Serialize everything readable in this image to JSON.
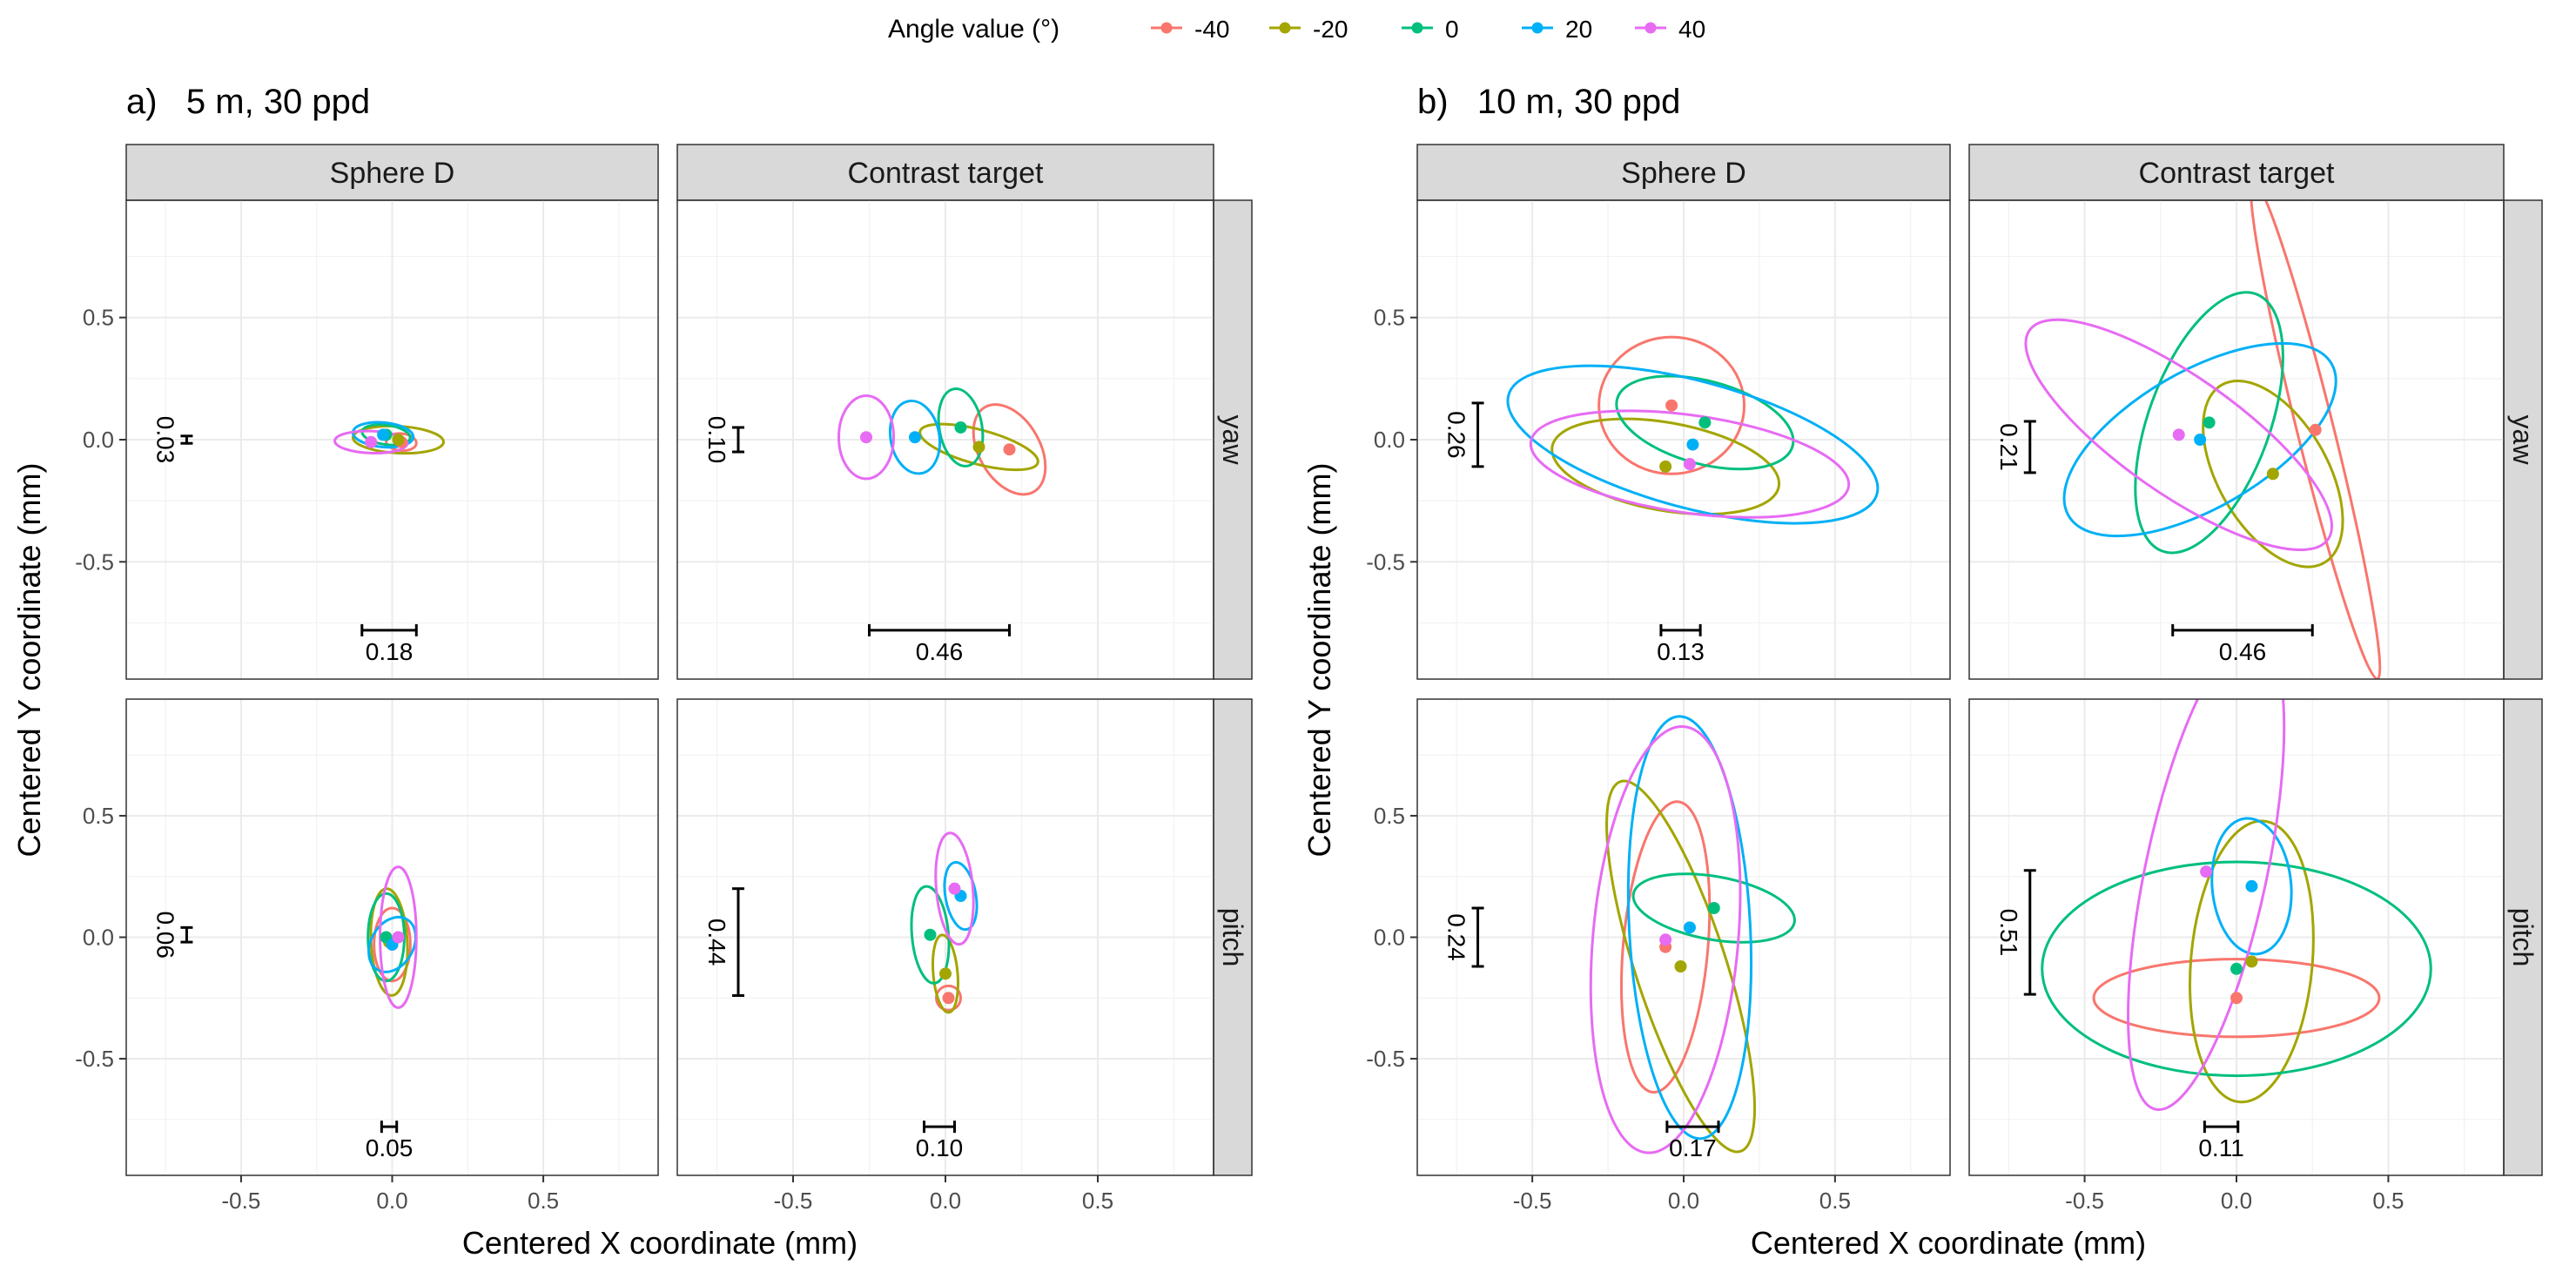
{
  "legend": {
    "title": "Angle value (°)",
    "items": [
      {
        "label": "-40",
        "color": "#F8766D"
      },
      {
        "label": "-20",
        "color": "#A3A500"
      },
      {
        "label": "0",
        "color": "#00BF7D"
      },
      {
        "label": "20",
        "color": "#00B0F6"
      },
      {
        "label": "40",
        "color": "#E76BF3"
      }
    ]
  },
  "axes": {
    "xlabel": "Centered X coordinate (mm)",
    "ylabel": "Centered Y coordinate (mm)",
    "xticks": [
      "-0.5",
      "0.0",
      "0.5"
    ],
    "yticks": [
      "0.5",
      "0.0",
      "-0.5"
    ]
  },
  "chart_data": [
    {
      "type": "scatter",
      "panel_title": "a)   5 m, 30 ppd",
      "xlim": [
        -0.88,
        0.88
      ],
      "ylim": [
        -0.98,
        0.98
      ],
      "facets": [
        {
          "col": "Sphere D",
          "row": "yaw",
          "h_bar": {
            "center": -0.01,
            "width": 0.18,
            "label": "0.18"
          },
          "v_bar": {
            "center": 0.0,
            "height": 0.03,
            "label": "0.03"
          },
          "series": [
            {
              "angle": "-40",
              "x": 0.03,
              "y": -0.01,
              "rx": 0.05,
              "ry": 0.035,
              "rot": -5
            },
            {
              "angle": "-20",
              "x": 0.02,
              "y": 0.0,
              "rx": 0.15,
              "ry": 0.055,
              "rot": -3
            },
            {
              "angle": "0",
              "x": -0.02,
              "y": 0.02,
              "rx": 0.08,
              "ry": 0.04,
              "rot": -8
            },
            {
              "angle": "20",
              "x": -0.03,
              "y": 0.02,
              "rx": 0.1,
              "ry": 0.05,
              "rot": -5
            },
            {
              "angle": "40",
              "x": -0.07,
              "y": -0.01,
              "rx": 0.12,
              "ry": 0.045,
              "rot": -2
            }
          ]
        },
        {
          "col": "Contrast target",
          "row": "yaw",
          "h_bar": {
            "center": -0.02,
            "width": 0.46,
            "label": "0.46"
          },
          "v_bar": {
            "center": 0.0,
            "height": 0.1,
            "label": "0.10"
          },
          "series": [
            {
              "angle": "-40",
              "x": 0.21,
              "y": -0.04,
              "rx": 0.1,
              "ry": 0.2,
              "rot": 30
            },
            {
              "angle": "-20",
              "x": 0.11,
              "y": -0.03,
              "rx": 0.2,
              "ry": 0.07,
              "rot": -15
            },
            {
              "angle": "0",
              "x": 0.05,
              "y": 0.05,
              "rx": 0.07,
              "ry": 0.16,
              "rot": 10
            },
            {
              "angle": "20",
              "x": -0.1,
              "y": 0.01,
              "rx": 0.08,
              "ry": 0.15,
              "rot": 10
            },
            {
              "angle": "40",
              "x": -0.26,
              "y": 0.01,
              "rx": 0.09,
              "ry": 0.17,
              "rot": 0
            }
          ]
        },
        {
          "col": "Sphere D",
          "row": "pitch",
          "h_bar": {
            "center": -0.01,
            "width": 0.05,
            "label": "0.05"
          },
          "v_bar": {
            "center": 0.01,
            "height": 0.06,
            "label": "0.06"
          },
          "series": [
            {
              "angle": "-40",
              "x": 0.0,
              "y": -0.03,
              "rx": 0.06,
              "ry": 0.15,
              "rot": 0
            },
            {
              "angle": "-20",
              "x": -0.01,
              "y": -0.02,
              "rx": 0.06,
              "ry": 0.22,
              "rot": 3
            },
            {
              "angle": "0",
              "x": -0.02,
              "y": 0.0,
              "rx": 0.06,
              "ry": 0.18,
              "rot": 0
            },
            {
              "angle": "20",
              "x": 0.0,
              "y": -0.03,
              "rx": 0.07,
              "ry": 0.12,
              "rot": -30
            },
            {
              "angle": "40",
              "x": 0.02,
              "y": 0.0,
              "rx": 0.06,
              "ry": 0.29,
              "rot": 0
            }
          ]
        },
        {
          "col": "Contrast target",
          "row": "pitch",
          "h_bar": {
            "center": -0.02,
            "width": 0.1,
            "label": "0.10"
          },
          "v_bar": {
            "center": -0.02,
            "height": 0.44,
            "label": "0.44"
          },
          "series": [
            {
              "angle": "-40",
              "x": 0.01,
              "y": -0.25,
              "rx": 0.04,
              "ry": 0.05,
              "rot": 0
            },
            {
              "angle": "-20",
              "x": 0.0,
              "y": -0.15,
              "rx": 0.04,
              "ry": 0.16,
              "rot": 5
            },
            {
              "angle": "0",
              "x": -0.05,
              "y": 0.01,
              "rx": 0.06,
              "ry": 0.2,
              "rot": 5
            },
            {
              "angle": "20",
              "x": 0.05,
              "y": 0.17,
              "rx": 0.05,
              "ry": 0.14,
              "rot": 10
            },
            {
              "angle": "40",
              "x": 0.03,
              "y": 0.2,
              "rx": 0.06,
              "ry": 0.23,
              "rot": 5
            }
          ]
        }
      ]
    },
    {
      "type": "scatter",
      "panel_title": "b)   10 m, 30 ppd",
      "xlim": [
        -0.88,
        0.88
      ],
      "ylim": [
        -0.98,
        0.98
      ],
      "facets": [
        {
          "col": "Sphere D",
          "row": "yaw",
          "h_bar": {
            "center": -0.01,
            "width": 0.13,
            "label": "0.13"
          },
          "v_bar": {
            "center": 0.02,
            "height": 0.26,
            "label": "0.26"
          },
          "series": [
            {
              "angle": "-40",
              "x": -0.04,
              "y": 0.14,
              "rx": 0.24,
              "ry": 0.28,
              "rot": 0
            },
            {
              "angle": "-20",
              "x": -0.06,
              "y": -0.11,
              "rx": 0.38,
              "ry": 0.18,
              "rot": -10
            },
            {
              "angle": "0",
              "x": 0.07,
              "y": 0.07,
              "rx": 0.3,
              "ry": 0.17,
              "rot": -15
            },
            {
              "angle": "20",
              "x": 0.03,
              "y": -0.02,
              "rx": 0.63,
              "ry": 0.26,
              "rot": -15
            },
            {
              "angle": "40",
              "x": 0.02,
              "y": -0.1,
              "rx": 0.53,
              "ry": 0.2,
              "rot": -8
            }
          ]
        },
        {
          "col": "Contrast target",
          "row": "yaw",
          "h_bar": {
            "center": 0.02,
            "width": 0.46,
            "label": "0.46"
          },
          "v_bar": {
            "center": -0.03,
            "height": 0.21,
            "label": "0.21"
          },
          "series": [
            {
              "angle": "-40",
              "x": 0.26,
              "y": 0.04,
              "rx": 0.06,
              "ry": 1.05,
              "rot": 14
            },
            {
              "angle": "-20",
              "x": 0.12,
              "y": -0.14,
              "rx": 0.18,
              "ry": 0.42,
              "rot": 30
            },
            {
              "angle": "0",
              "x": -0.09,
              "y": 0.07,
              "rx": 0.2,
              "ry": 0.56,
              "rot": -20
            },
            {
              "angle": "20",
              "x": -0.12,
              "y": 0.0,
              "rx": 0.5,
              "ry": 0.28,
              "rot": 30
            },
            {
              "angle": "40",
              "x": -0.19,
              "y": 0.02,
              "rx": 0.6,
              "ry": 0.24,
              "rot": -35
            }
          ]
        },
        {
          "col": "Sphere D",
          "row": "pitch",
          "h_bar": {
            "center": 0.03,
            "width": 0.17,
            "label": "0.17"
          },
          "v_bar": {
            "center": 0.0,
            "height": 0.24,
            "label": "0.24"
          },
          "series": [
            {
              "angle": "-40",
              "x": -0.06,
              "y": -0.04,
              "rx": 0.14,
              "ry": 0.6,
              "rot": -5
            },
            {
              "angle": "-20",
              "x": -0.01,
              "y": -0.12,
              "rx": 0.15,
              "ry": 0.8,
              "rot": 18
            },
            {
              "angle": "0",
              "x": 0.1,
              "y": 0.12,
              "rx": 0.27,
              "ry": 0.13,
              "rot": -10
            },
            {
              "angle": "20",
              "x": 0.02,
              "y": 0.04,
              "rx": 0.2,
              "ry": 0.87,
              "rot": 3
            },
            {
              "angle": "40",
              "x": -0.06,
              "y": -0.01,
              "rx": 0.24,
              "ry": 0.88,
              "rot": -5
            }
          ]
        },
        {
          "col": "Contrast target",
          "row": "pitch",
          "h_bar": {
            "center": -0.05,
            "width": 0.11,
            "label": "0.11"
          },
          "v_bar": {
            "center": 0.02,
            "height": 0.51,
            "label": "0.51"
          },
          "series": [
            {
              "angle": "-40",
              "x": 0.0,
              "y": -0.25,
              "rx": 0.47,
              "ry": 0.16,
              "rot": 0
            },
            {
              "angle": "-20",
              "x": 0.05,
              "y": -0.1,
              "rx": 0.2,
              "ry": 0.58,
              "rot": -5
            },
            {
              "angle": "0",
              "x": 0.0,
              "y": -0.13,
              "rx": 0.64,
              "ry": 0.44,
              "rot": 0
            },
            {
              "angle": "20",
              "x": 0.05,
              "y": 0.21,
              "rx": 0.13,
              "ry": 0.28,
              "rot": 5
            },
            {
              "angle": "40",
              "x": -0.1,
              "y": 0.27,
              "rx": 0.2,
              "ry": 1.0,
              "rot": -12
            }
          ]
        }
      ]
    }
  ]
}
